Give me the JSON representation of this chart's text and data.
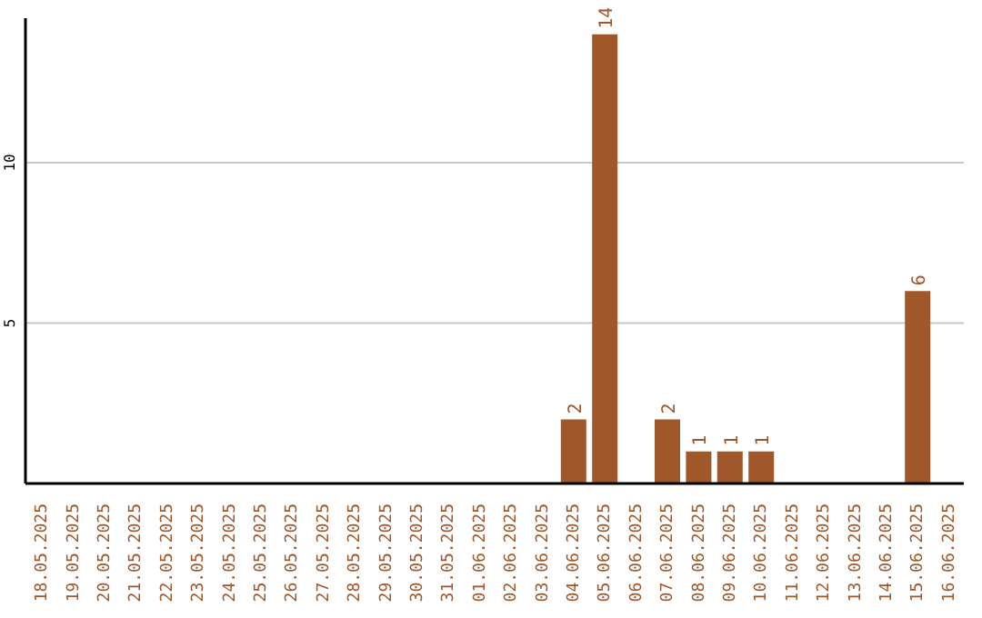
{
  "chart_data": {
    "type": "bar",
    "categories": [
      "18.05.2025",
      "19.05.2025",
      "20.05.2025",
      "21.05.2025",
      "22.05.2025",
      "23.05.2025",
      "24.05.2025",
      "25.05.2025",
      "26.05.2025",
      "27.05.2025",
      "28.05.2025",
      "29.05.2025",
      "30.05.2025",
      "31.05.2025",
      "01.06.2025",
      "02.06.2025",
      "03.06.2025",
      "04.06.2025",
      "05.06.2025",
      "06.06.2025",
      "07.06.2025",
      "08.06.2025",
      "09.06.2025",
      "10.06.2025",
      "11.06.2025",
      "12.06.2025",
      "13.06.2025",
      "14.06.2025",
      "15.06.2025",
      "16.06.2025"
    ],
    "values": [
      null,
      null,
      null,
      null,
      null,
      null,
      null,
      null,
      null,
      null,
      null,
      null,
      null,
      null,
      null,
      null,
      null,
      2,
      14,
      null,
      2,
      1,
      1,
      1,
      null,
      null,
      null,
      null,
      6,
      null
    ],
    "color": "#a0572a",
    "ylim": [
      0,
      14.5
    ],
    "yticks": [
      5,
      10
    ],
    "grid": "y",
    "data_labels": true
  }
}
